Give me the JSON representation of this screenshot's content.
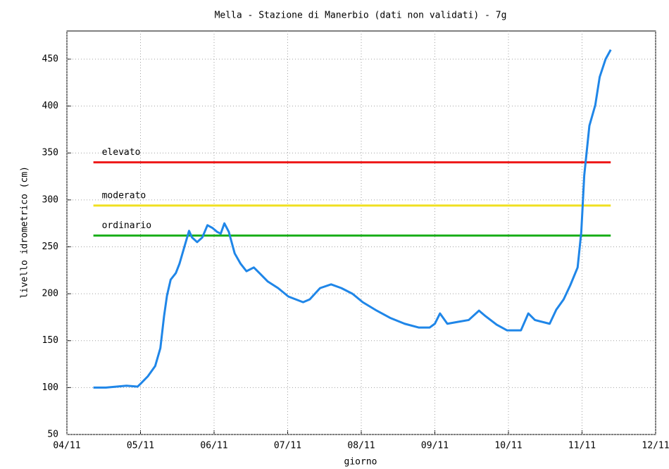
{
  "chart_data": {
    "type": "line",
    "title": "Mella - Stazione di Manerbio (dati non validati) - 7g",
    "x_label": "giorno",
    "y_label": "livello idrometrico (cm)",
    "xlim": [
      0,
      8
    ],
    "ylim": [
      50,
      480
    ],
    "xticks": [
      {
        "value": 0,
        "label": "04/11"
      },
      {
        "value": 1,
        "label": "05/11"
      },
      {
        "value": 2,
        "label": "06/11"
      },
      {
        "value": 3,
        "label": "07/11"
      },
      {
        "value": 4,
        "label": "08/11"
      },
      {
        "value": 5,
        "label": "09/11"
      },
      {
        "value": 6,
        "label": "10/11"
      },
      {
        "value": 7,
        "label": "11/11"
      },
      {
        "value": 8,
        "label": "12/11"
      }
    ],
    "yticks": [
      50,
      100,
      150,
      200,
      250,
      300,
      350,
      400,
      450
    ],
    "grid": true,
    "thresholds": [
      {
        "name": "elevato",
        "value": 340,
        "color": "#ee1c1c"
      },
      {
        "name": "moderato",
        "value": 294,
        "color": "#f0e020"
      },
      {
        "name": "ordinario",
        "value": 262,
        "color": "#1eb01e"
      }
    ],
    "series": [
      {
        "color": "#1f86e8",
        "x": [
          0.36,
          0.53,
          0.81,
          0.96,
          1.0,
          1.1,
          1.2,
          1.27,
          1.32,
          1.36,
          1.41,
          1.48,
          1.53,
          1.6,
          1.66,
          1.7,
          1.77,
          1.84,
          1.91,
          1.98,
          2.04,
          2.09,
          2.14,
          2.2,
          2.28,
          2.36,
          2.44,
          2.54,
          2.63,
          2.73,
          2.87,
          3.01,
          3.21,
          3.3,
          3.44,
          3.59,
          3.73,
          3.88,
          4.02,
          4.21,
          4.4,
          4.59,
          4.78,
          4.93,
          5.0,
          5.07,
          5.17,
          5.31,
          5.46,
          5.6,
          5.69,
          5.84,
          5.98,
          6.17,
          6.27,
          6.36,
          6.56,
          6.65,
          6.75,
          6.84,
          6.94,
          6.99,
          7.03,
          7.1,
          7.18,
          7.24,
          7.32,
          7.39
        ],
        "values": [
          100,
          100,
          102,
          101,
          104,
          112,
          123,
          142,
          176,
          198,
          215,
          222,
          232,
          251,
          267,
          260,
          255,
          260,
          273,
          270,
          266,
          264,
          275,
          266,
          243,
          232,
          224,
          228,
          221,
          213,
          206,
          197,
          191,
          194,
          206,
          210,
          206,
          200,
          191,
          182,
          174,
          168,
          164,
          164,
          168,
          179,
          168,
          170,
          172,
          182,
          176,
          167,
          161,
          161,
          179,
          172,
          168,
          183,
          194,
          209,
          228,
          266,
          326,
          379,
          401,
          431,
          450,
          460
        ]
      }
    ]
  }
}
